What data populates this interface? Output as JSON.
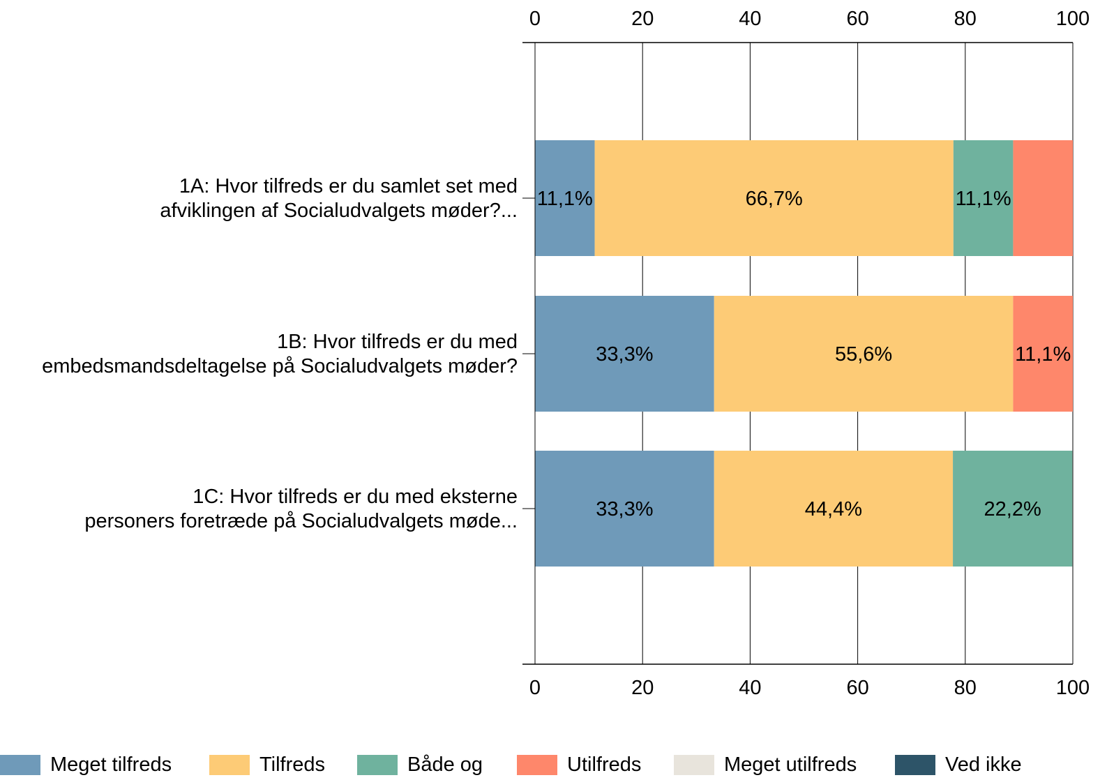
{
  "chart_data": {
    "type": "bar",
    "orientation": "horizontal",
    "stacked": true,
    "categories": [
      "1A: Hvor tilfreds er du samlet set med afviklingen af Socialudvalgets møder?...",
      "1B: Hvor tilfreds er du med embedsmandsdeltagelse på Socialudvalgets møder?",
      "1C: Hvor tilfreds er du med eksterne personers foretræde på Socialudvalgets møde..."
    ],
    "category_lines": [
      [
        "1A: Hvor tilfreds er du samlet set med",
        "afviklingen af Socialudvalgets møder?..."
      ],
      [
        "1B: Hvor tilfreds er du med",
        "embedsmandsdeltagelse på Socialudvalgets møder?"
      ],
      [
        "1C: Hvor tilfreds er du med eksterne",
        "personers foretræde på Socialudvalgets møde..."
      ]
    ],
    "series": [
      {
        "name": "Meget tilfreds",
        "color": "#6f9ab9",
        "values": [
          11.1,
          33.3,
          33.3
        ],
        "labels": [
          "11,1%",
          "33,3%",
          "33,3%"
        ]
      },
      {
        "name": "Tilfreds",
        "color": "#fdcb76",
        "values": [
          66.7,
          55.6,
          44.4
        ],
        "labels": [
          "66,7%",
          "55,6%",
          "44,4%"
        ]
      },
      {
        "name": "Både og",
        "color": "#6fb29e",
        "values": [
          11.1,
          0,
          22.2
        ],
        "labels": [
          "11,1%",
          "",
          "22,2%"
        ]
      },
      {
        "name": "Utilfreds",
        "color": "#fe876b",
        "values": [
          11.1,
          11.1,
          0
        ],
        "labels": [
          "",
          "11,1%",
          ""
        ]
      },
      {
        "name": "Meget utilfreds",
        "color": "#e8e4dc",
        "values": [
          0,
          0,
          0
        ],
        "labels": [
          "",
          "",
          ""
        ]
      },
      {
        "name": "Ved ikke",
        "color": "#2d5468",
        "values": [
          0,
          0,
          0
        ],
        "labels": [
          "",
          "",
          ""
        ]
      }
    ],
    "xlim": [
      0,
      100
    ],
    "xticks": [
      "0",
      "20",
      "40",
      "60",
      "80",
      "100"
    ],
    "grid": true,
    "legend": "bottom",
    "title": "",
    "xlabel": "",
    "ylabel": ""
  }
}
